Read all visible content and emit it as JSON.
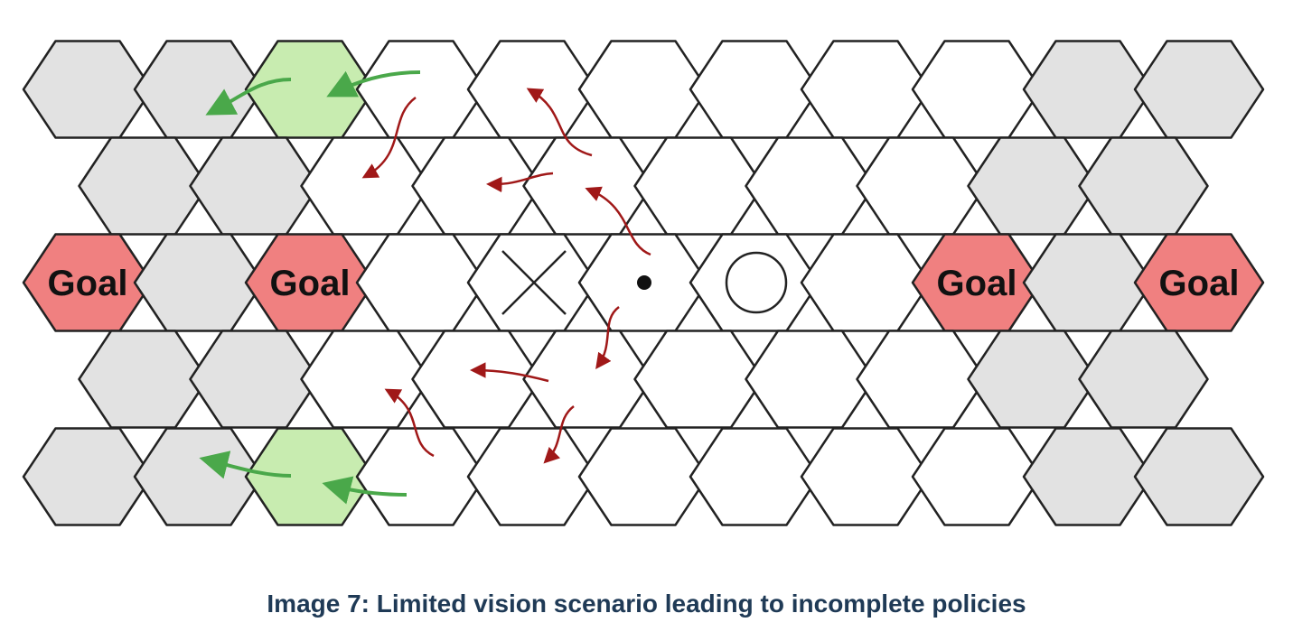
{
  "diagram": {
    "colors": {
      "outline": "#222222",
      "empty": "#ffffff",
      "unseen": "#e2e2e2",
      "goal": "#f08080",
      "green": "#c8ecb0",
      "green_arrow": "#4aa84a",
      "red_arrow": "#a01818"
    },
    "goal_label": "Goal",
    "marker_icons": [
      "x-mark-icon",
      "agent-dot-icon",
      "ring-icon"
    ]
  },
  "caption": "Image 7: Limited vision scenario leading to incomplete policies"
}
